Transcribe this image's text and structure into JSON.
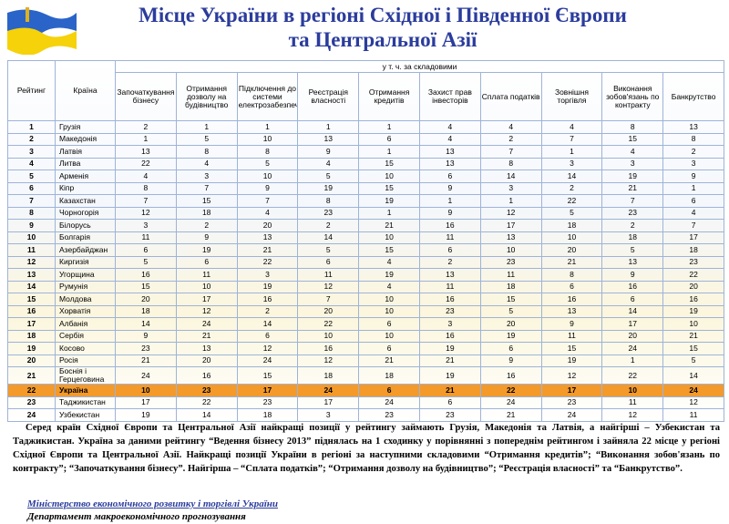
{
  "header": {
    "title": [
      "Місце України в регіоні Східної і Південної Європи",
      "та Центральної Азії"
    ]
  },
  "table": {
    "rank_header": "Рейтинг",
    "country_header": "Країна",
    "group_header": "у т. ч. за складовими",
    "columns": [
      "Започаткування бізнесу",
      "Отримання дозволу на будівництво",
      "Підключення до системи електрозабезпечення",
      "Реєстрація власності",
      "Отримання кредитів",
      "Захист прав інвесторів",
      "Сплата податків",
      "Зовнішня торгівля",
      "Виконання зобов'язань по контракту",
      "Банкрутство"
    ],
    "rows": [
      [
        1,
        "Грузія",
        2,
        1,
        1,
        1,
        1,
        4,
        4,
        4,
        8,
        13
      ],
      [
        2,
        "Македонія",
        1,
        5,
        10,
        13,
        6,
        4,
        2,
        7,
        15,
        8
      ],
      [
        3,
        "Латвія",
        13,
        8,
        8,
        9,
        1,
        13,
        7,
        1,
        4,
        2
      ],
      [
        4,
        "Литва",
        22,
        4,
        5,
        4,
        15,
        13,
        8,
        3,
        3,
        3
      ],
      [
        5,
        "Арменія",
        4,
        3,
        10,
        5,
        10,
        6,
        14,
        14,
        19,
        9
      ],
      [
        6,
        "Кіпр",
        8,
        7,
        9,
        19,
        15,
        9,
        3,
        2,
        21,
        1
      ],
      [
        7,
        "Казахстан",
        7,
        15,
        7,
        8,
        19,
        1,
        1,
        22,
        7,
        6
      ],
      [
        8,
        "Чорногорія",
        12,
        18,
        4,
        23,
        1,
        9,
        12,
        5,
        23,
        4
      ],
      [
        9,
        "Білорусь",
        3,
        2,
        20,
        2,
        21,
        16,
        17,
        18,
        2,
        7
      ],
      [
        10,
        "Болгарія",
        11,
        9,
        13,
        14,
        10,
        11,
        13,
        10,
        18,
        17
      ],
      [
        11,
        "Азербайджан",
        6,
        19,
        21,
        5,
        15,
        6,
        10,
        20,
        5,
        18
      ],
      [
        12,
        "Киргизія",
        5,
        6,
        22,
        6,
        4,
        2,
        23,
        21,
        13,
        23
      ],
      [
        13,
        "Угорщина",
        16,
        11,
        3,
        11,
        19,
        13,
        11,
        8,
        9,
        22
      ],
      [
        14,
        "Румунія",
        15,
        10,
        19,
        12,
        4,
        11,
        18,
        6,
        16,
        20
      ],
      [
        15,
        "Молдова",
        20,
        17,
        16,
        7,
        10,
        16,
        15,
        16,
        6,
        16
      ],
      [
        16,
        "Хорватія",
        18,
        12,
        2,
        20,
        10,
        23,
        5,
        13,
        14,
        19
      ],
      [
        17,
        "Албанія",
        14,
        24,
        14,
        22,
        6,
        3,
        20,
        9,
        17,
        10
      ],
      [
        18,
        "Сербія",
        9,
        21,
        6,
        10,
        10,
        16,
        19,
        11,
        20,
        21
      ],
      [
        19,
        "Косово",
        23,
        13,
        12,
        16,
        6,
        19,
        6,
        15,
        24,
        15
      ],
      [
        20,
        "Росія",
        21,
        20,
        24,
        12,
        21,
        21,
        9,
        19,
        1,
        5
      ],
      [
        21,
        "Боснія і Герцеговина",
        24,
        16,
        15,
        18,
        18,
        19,
        16,
        12,
        22,
        14
      ],
      [
        22,
        "Україна",
        10,
        23,
        17,
        24,
        6,
        21,
        22,
        17,
        10,
        24
      ],
      [
        23,
        "Таджикистан",
        17,
        22,
        23,
        17,
        24,
        6,
        24,
        23,
        11,
        12
      ],
      [
        24,
        "Узбекистан",
        19,
        14,
        18,
        3,
        23,
        23,
        21,
        24,
        12,
        11
      ]
    ]
  },
  "paragraph": "Серед країн Східної Європи та Центральної Азії найкращі позиції у рейтингу займають Грузія, Македонія та Латвія, а найгірші – Узбекистан та Таджикистан. Україна за даними рейтингу “Ведення бізнесу 2013” піднялась на 1 сходинку у порівнянні з попереднім рейтингом і зайняла 22 місце у регіоні Східної Європи та Центральної Азії. Найкращі позиції України в регіоні за наступними складовими “Отримання кредитів”; “Виконання зобов'язань по контракту”; “Започаткування бізнесу”. Найгірша – “Сплата податків”; “Отримання дозволу на будівництво”; “Реєстрація власності” та “Банкрутство”.",
  "footer": {
    "ministry": "Міністерство економічного розвитку і торгівлі України",
    "department": "Департамент макроекономічного прогнозування"
  }
}
